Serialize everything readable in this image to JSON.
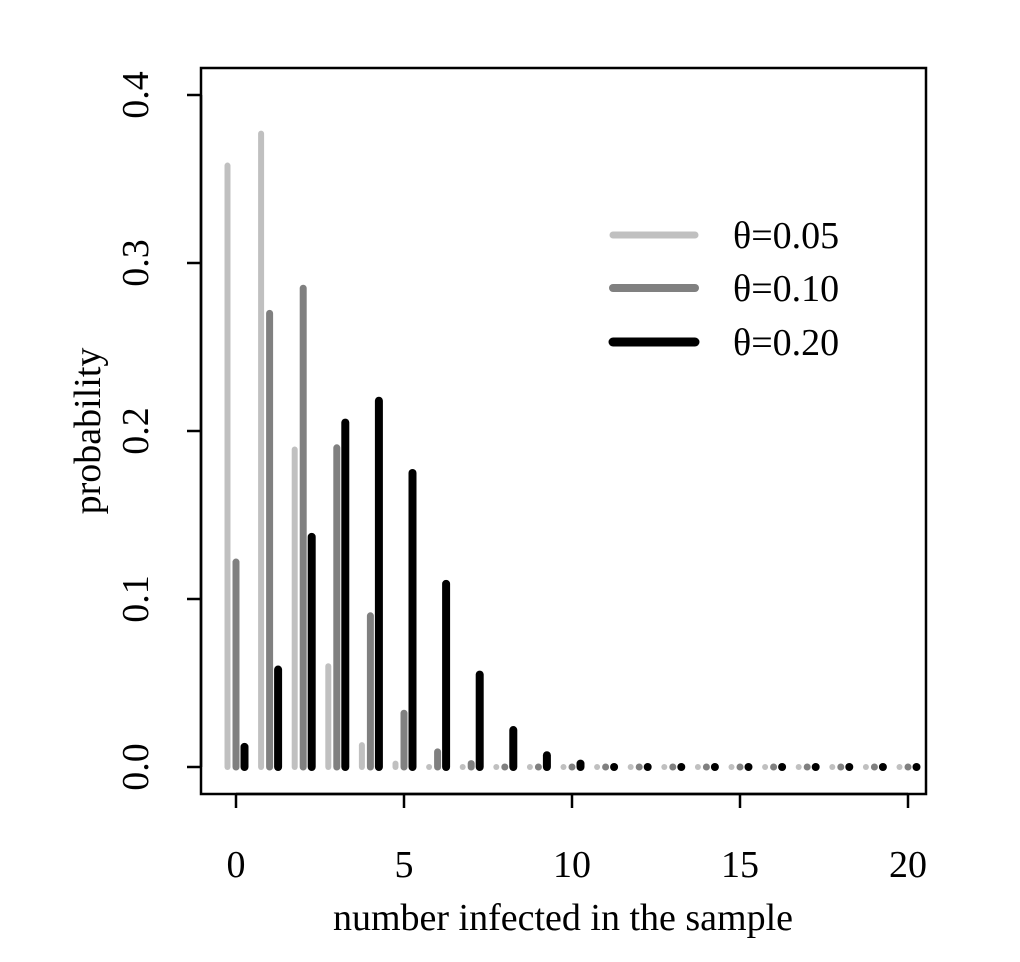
{
  "chart_data": {
    "type": "bar",
    "xlabel": "number infected in the sample",
    "ylabel": "probability",
    "xlim": [
      -1,
      20.5
    ],
    "ylim": [
      0,
      0.4
    ],
    "x_ticks": [
      "0",
      "5",
      "10",
      "15",
      "20"
    ],
    "y_ticks": [
      "0.0",
      "0.1",
      "0.2",
      "0.3",
      "0.4"
    ],
    "grid": false,
    "legend_position": "top-right",
    "x": [
      0,
      1,
      2,
      3,
      4,
      5,
      6,
      7,
      8,
      9,
      10,
      11,
      12,
      13,
      14,
      15,
      16,
      17,
      18,
      19,
      20
    ],
    "series": [
      {
        "name": "θ=0.05",
        "color": "#c0c0c0",
        "values": [
          0.358,
          0.377,
          0.189,
          0.06,
          0.013,
          0.002,
          0.0,
          0.0,
          0.0,
          0.0,
          0.0,
          0.0,
          0.0,
          0.0,
          0.0,
          0.0,
          0.0,
          0.0,
          0.0,
          0.0,
          0.0
        ]
      },
      {
        "name": "θ=0.10",
        "color": "#808080",
        "values": [
          0.122,
          0.27,
          0.285,
          0.19,
          0.09,
          0.032,
          0.009,
          0.002,
          0.0,
          0.0,
          0.0,
          0.0,
          0.0,
          0.0,
          0.0,
          0.0,
          0.0,
          0.0,
          0.0,
          0.0,
          0.0
        ]
      },
      {
        "name": "θ=0.20",
        "color": "#000000",
        "values": [
          0.012,
          0.058,
          0.137,
          0.205,
          0.218,
          0.175,
          0.109,
          0.055,
          0.022,
          0.007,
          0.002,
          0.0,
          0.0,
          0.0,
          0.0,
          0.0,
          0.0,
          0.0,
          0.0,
          0.0,
          0.0
        ]
      }
    ]
  }
}
